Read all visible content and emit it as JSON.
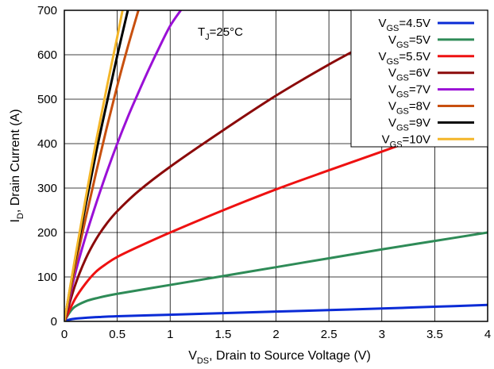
{
  "chart_data": {
    "type": "line",
    "xlim": [
      0,
      4
    ],
    "ylim": [
      0,
      700
    ],
    "x_ticks": [
      "0",
      "0.5",
      "1",
      "1.5",
      "2",
      "2.5",
      "3",
      "3.5",
      "4"
    ],
    "y_ticks": [
      "0",
      "100",
      "200",
      "300",
      "400",
      "500",
      "600",
      "700"
    ],
    "grid": true,
    "legend_position": "top-right",
    "xlabel": {
      "main": "V",
      "sub": "DS",
      "rest": ", Drain to Source Voltage (V)"
    },
    "ylabel": {
      "main": "I",
      "sub": "D",
      "rest": ", Drain Current (A)"
    },
    "annotation": {
      "main": "T",
      "sub": "J",
      "rest": "=25°C"
    },
    "series": [
      {
        "name": "VGS=4.5V",
        "label_main": "V",
        "label_sub": "GS",
        "label_rest": "=4.5V",
        "color": "#0a2bd6",
        "x": [
          0,
          0.05,
          0.1,
          0.2,
          0.3,
          0.5,
          1,
          1.5,
          2,
          2.5,
          3,
          3.5,
          4
        ],
        "y": [
          0,
          4,
          6,
          8,
          9.5,
          11.5,
          15,
          18.5,
          22,
          25.5,
          29,
          33,
          37
        ]
      },
      {
        "name": "VGS=5V",
        "label_main": "V",
        "label_sub": "GS",
        "label_rest": "=5V",
        "color": "#2e8b57",
        "x": [
          0,
          0.05,
          0.1,
          0.2,
          0.3,
          0.5,
          1,
          1.5,
          2,
          2.5,
          3,
          3.5,
          4
        ],
        "y": [
          0,
          20,
          33,
          45,
          52,
          62,
          82,
          102,
          122,
          142,
          162,
          181,
          200
        ]
      },
      {
        "name": "VGS=5.5V",
        "label_main": "V",
        "label_sub": "GS",
        "label_rest": "=5.5V",
        "color": "#ee1111",
        "x": [
          0,
          0.1,
          0.2,
          0.3,
          0.4,
          0.5,
          0.7,
          1,
          1.5,
          2,
          2.5,
          3,
          3.5,
          4
        ],
        "y": [
          0,
          50,
          85,
          112,
          130,
          145,
          168,
          200,
          250,
          297,
          340,
          382,
          425,
          467
        ]
      },
      {
        "name": "VGS=6V",
        "label_main": "V",
        "label_sub": "GS",
        "label_rest": "=6V",
        "color": "#8b0a0a",
        "x": [
          0,
          0.1,
          0.2,
          0.3,
          0.4,
          0.5,
          0.7,
          1,
          1.5,
          2,
          2.5,
          3,
          3.37
        ],
        "y": [
          0,
          80,
          140,
          185,
          220,
          248,
          293,
          348,
          430,
          508,
          578,
          643,
          700
        ]
      },
      {
        "name": "VGS=7V",
        "label_main": "V",
        "label_sub": "GS",
        "label_rest": "=7V",
        "color": "#9a10d6",
        "x": [
          0,
          0.1,
          0.2,
          0.3,
          0.4,
          0.5,
          0.6,
          0.7,
          0.8,
          0.9,
          1,
          1.1
        ],
        "y": [
          0,
          105,
          190,
          265,
          335,
          400,
          460,
          515,
          568,
          618,
          665,
          700
        ]
      },
      {
        "name": "VGS=8V",
        "label_main": "V",
        "label_sub": "GS",
        "label_rest": "=8V",
        "color": "#c8500f",
        "x": [
          0,
          0.1,
          0.2,
          0.3,
          0.4,
          0.5,
          0.6,
          0.7
        ],
        "y": [
          0,
          120,
          230,
          335,
          435,
          530,
          618,
          700
        ]
      },
      {
        "name": "VGS=9V",
        "label_main": "V",
        "label_sub": "GS",
        "label_rest": "=9V",
        "color": "#000000",
        "x": [
          0,
          0.1,
          0.2,
          0.3,
          0.4,
          0.5,
          0.6
        ],
        "y": [
          0,
          135,
          260,
          380,
          490,
          598,
          700
        ]
      },
      {
        "name": "VGS=10V",
        "label_main": "V",
        "label_sub": "GS",
        "label_rest": "=10V",
        "color": "#f4b629",
        "x": [
          0,
          0.1,
          0.2,
          0.3,
          0.4,
          0.5,
          0.55
        ],
        "y": [
          0,
          140,
          275,
          405,
          525,
          640,
          700
        ]
      }
    ]
  }
}
